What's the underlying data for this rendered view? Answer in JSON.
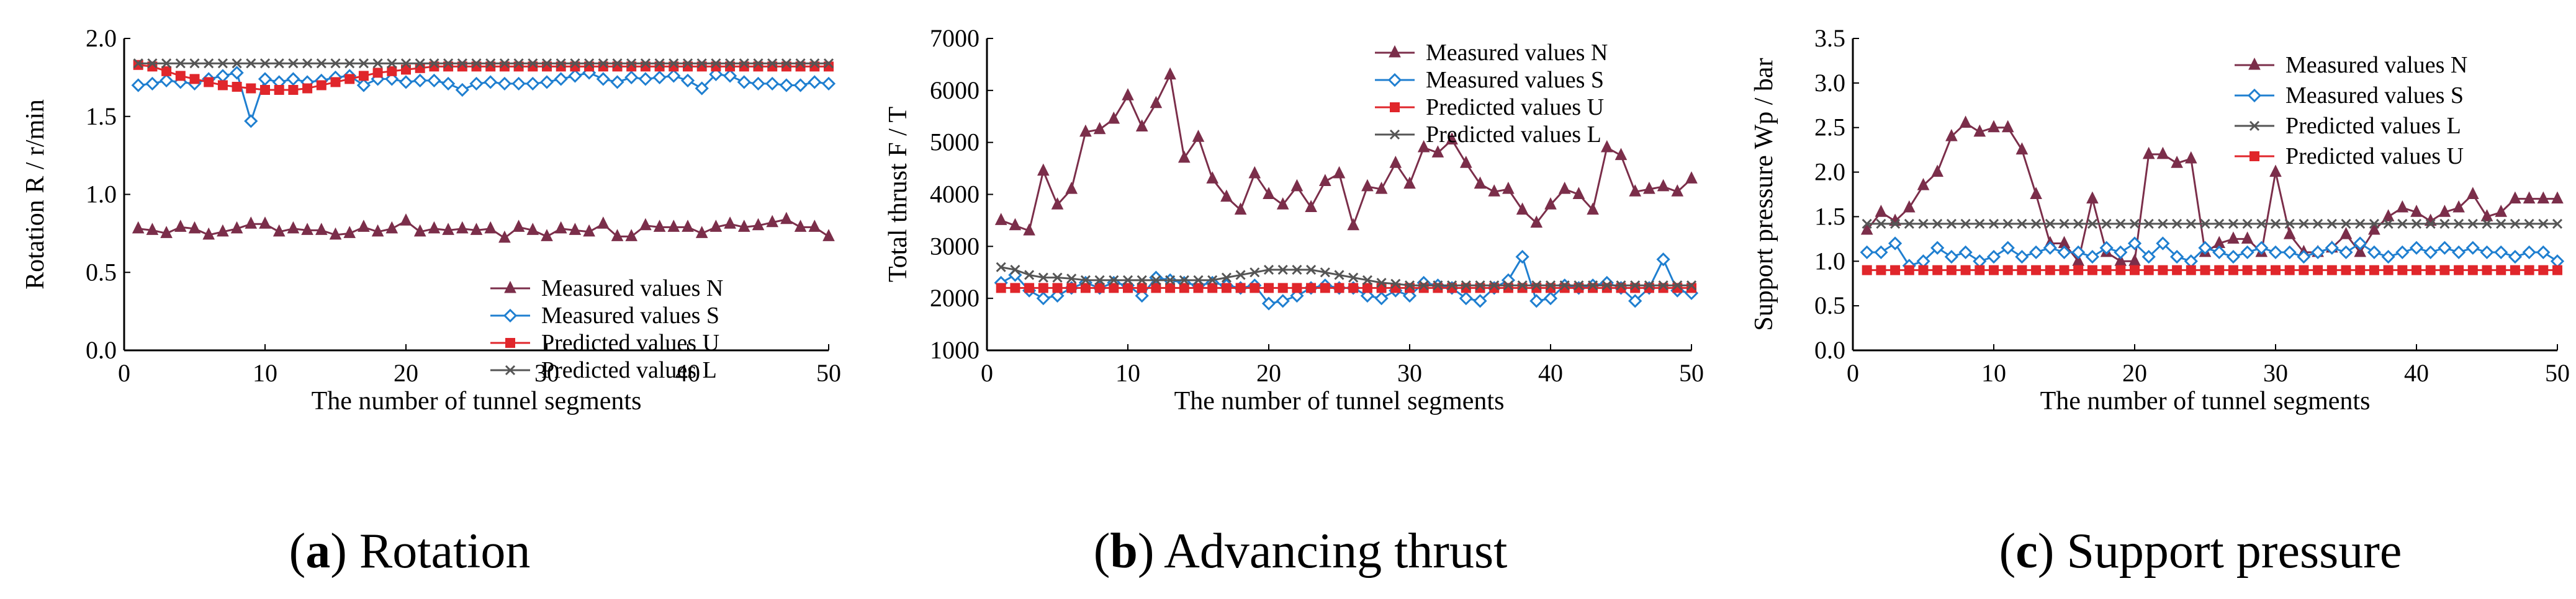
{
  "chart_data": [
    {
      "type": "line",
      "caption_letter": "a",
      "caption_text": "Rotation",
      "xlabel": "The number of tunnel segments",
      "ylabel": "Rotation R / r/min",
      "xlim": [
        0,
        50
      ],
      "ylim": [
        0,
        2.0
      ],
      "xticks": [
        0,
        10,
        20,
        30,
        40,
        50
      ],
      "yticks": [
        0.0,
        0.5,
        1.0,
        1.5,
        2.0
      ],
      "ytick_labels": [
        "0.0",
        "0.5",
        "1.0",
        "1.5",
        "2.0"
      ],
      "legend_position": "bottom-right",
      "series": [
        {
          "name": "Measured values N",
          "color": "#7b2e4a",
          "marker": "triangle",
          "values": [
            0.78,
            0.77,
            0.75,
            0.79,
            0.78,
            0.74,
            0.76,
            0.78,
            0.81,
            0.81,
            0.76,
            0.78,
            0.77,
            0.77,
            0.74,
            0.75,
            0.79,
            0.76,
            0.78,
            0.83,
            0.76,
            0.78,
            0.77,
            0.78,
            0.77,
            0.78,
            0.72,
            0.79,
            0.77,
            0.73,
            0.78,
            0.77,
            0.76,
            0.81,
            0.73,
            0.73,
            0.8,
            0.79,
            0.79,
            0.79,
            0.75,
            0.79,
            0.81,
            0.79,
            0.8,
            0.82,
            0.84,
            0.79,
            0.79,
            0.73
          ]
        },
        {
          "name": "Measured values S",
          "color": "#1f7fd0",
          "marker": "diamond",
          "values": [
            1.7,
            1.71,
            1.73,
            1.72,
            1.71,
            1.74,
            1.76,
            1.78,
            1.47,
            1.74,
            1.72,
            1.74,
            1.72,
            1.73,
            1.75,
            1.76,
            1.7,
            1.74,
            1.74,
            1.72,
            1.73,
            1.73,
            1.71,
            1.67,
            1.71,
            1.72,
            1.71,
            1.71,
            1.71,
            1.72,
            1.74,
            1.76,
            1.78,
            1.74,
            1.72,
            1.75,
            1.74,
            1.75,
            1.76,
            1.73,
            1.68,
            1.77,
            1.76,
            1.72,
            1.71,
            1.71,
            1.7,
            1.7,
            1.72,
            1.71
          ]
        },
        {
          "name": "Predicted values U",
          "color": "#e0262b",
          "marker": "square",
          "values": [
            1.83,
            1.82,
            1.79,
            1.76,
            1.74,
            1.72,
            1.7,
            1.69,
            1.68,
            1.67,
            1.67,
            1.67,
            1.68,
            1.7,
            1.72,
            1.74,
            1.76,
            1.78,
            1.79,
            1.8,
            1.81,
            1.82,
            1.82,
            1.82,
            1.82,
            1.82,
            1.82,
            1.82,
            1.82,
            1.82,
            1.82,
            1.82,
            1.82,
            1.82,
            1.82,
            1.82,
            1.82,
            1.82,
            1.82,
            1.82,
            1.82,
            1.82,
            1.82,
            1.82,
            1.82,
            1.82,
            1.82,
            1.82,
            1.82,
            1.82
          ]
        },
        {
          "name": "Predicted values L",
          "color": "#555555",
          "marker": "x",
          "values": [
            1.84,
            1.84,
            1.84,
            1.84,
            1.84,
            1.84,
            1.84,
            1.84,
            1.84,
            1.84,
            1.84,
            1.84,
            1.84,
            1.84,
            1.84,
            1.84,
            1.84,
            1.84,
            1.84,
            1.84,
            1.84,
            1.84,
            1.84,
            1.84,
            1.84,
            1.84,
            1.84,
            1.84,
            1.84,
            1.84,
            1.84,
            1.84,
            1.84,
            1.84,
            1.84,
            1.84,
            1.84,
            1.84,
            1.84,
            1.84,
            1.84,
            1.84,
            1.84,
            1.84,
            1.84,
            1.84,
            1.84,
            1.84,
            1.84,
            1.84
          ]
        }
      ]
    },
    {
      "type": "line",
      "caption_letter": "b",
      "caption_text": "Advancing thrust",
      "xlabel": "The number of tunnel segments",
      "ylabel": "Total thrust F / T",
      "xlim": [
        0,
        50
      ],
      "ylim": [
        1000,
        7000
      ],
      "xticks": [
        0,
        10,
        20,
        30,
        40,
        50
      ],
      "yticks": [
        1000,
        2000,
        3000,
        4000,
        5000,
        6000,
        7000
      ],
      "ytick_labels": [
        "1000",
        "2000",
        "3000",
        "4000",
        "5000",
        "6000",
        "7000"
      ],
      "legend_position": "top-right",
      "series": [
        {
          "name": "Measured values N",
          "color": "#7b2e4a",
          "marker": "triangle",
          "values": [
            3500,
            3400,
            3300,
            4450,
            3800,
            4100,
            5200,
            5250,
            5450,
            5900,
            5300,
            5750,
            6300,
            4700,
            5100,
            4300,
            3950,
            3700,
            4400,
            4000,
            3800,
            4150,
            3750,
            4250,
            4400,
            3400,
            4150,
            4100,
            4600,
            4200,
            4900,
            4800,
            5050,
            4600,
            4200,
            4050,
            4100,
            3700,
            3450,
            3800,
            4100,
            4000,
            3700,
            4900,
            4750,
            4050,
            4100,
            4150,
            4050,
            4300
          ]
        },
        {
          "name": "Measured values S",
          "color": "#1f7fd0",
          "marker": "diamond",
          "values": [
            2300,
            2450,
            2150,
            2000,
            2050,
            2200,
            2300,
            2200,
            2300,
            2250,
            2050,
            2400,
            2350,
            2300,
            2250,
            2300,
            2250,
            2200,
            2250,
            1900,
            1950,
            2050,
            2200,
            2250,
            2200,
            2200,
            2050,
            2000,
            2150,
            2050,
            2300,
            2250,
            2200,
            2000,
            1950,
            2200,
            2350,
            2800,
            1950,
            2000,
            2250,
            2200,
            2250,
            2300,
            2200,
            1950,
            2200,
            2750,
            2150,
            2100
          ]
        },
        {
          "name": "Predicted values U",
          "color": "#e0262b",
          "marker": "square",
          "values": [
            2200,
            2200,
            2200,
            2200,
            2200,
            2200,
            2200,
            2200,
            2200,
            2200,
            2200,
            2200,
            2200,
            2200,
            2200,
            2200,
            2200,
            2200,
            2200,
            2200,
            2200,
            2200,
            2200,
            2200,
            2200,
            2200,
            2200,
            2200,
            2200,
            2200,
            2200,
            2200,
            2200,
            2200,
            2200,
            2200,
            2200,
            2200,
            2200,
            2200,
            2200,
            2200,
            2200,
            2200,
            2200,
            2200,
            2200,
            2200,
            2200,
            2200
          ]
        },
        {
          "name": "Predicted values L",
          "color": "#555555",
          "marker": "x",
          "values": [
            2600,
            2550,
            2450,
            2400,
            2400,
            2380,
            2350,
            2350,
            2350,
            2350,
            2350,
            2350,
            2350,
            2350,
            2350,
            2350,
            2400,
            2450,
            2500,
            2550,
            2550,
            2550,
            2550,
            2500,
            2450,
            2400,
            2350,
            2300,
            2280,
            2250,
            2250,
            2250,
            2250,
            2250,
            2250,
            2250,
            2250,
            2250,
            2250,
            2250,
            2250,
            2250,
            2250,
            2250,
            2250,
            2250,
            2250,
            2250,
            2250,
            2250
          ]
        }
      ]
    },
    {
      "type": "line",
      "caption_letter": "c",
      "caption_text": "Support pressure",
      "xlabel": "The number of tunnel segments",
      "ylabel": "Support pressure Wp / bar",
      "xlim": [
        0,
        50
      ],
      "ylim": [
        0,
        3.5
      ],
      "xticks": [
        0,
        10,
        20,
        30,
        40,
        50
      ],
      "yticks": [
        0.0,
        0.5,
        1.0,
        1.5,
        2.0,
        2.5,
        3.0,
        3.5
      ],
      "ytick_labels": [
        "0.0",
        "0.5",
        "1.0",
        "1.5",
        "2.0",
        "2.5",
        "3.0",
        "3.5"
      ],
      "legend_position": "top-right",
      "series": [
        {
          "name": "Measured values N",
          "color": "#7b2e4a",
          "marker": "triangle",
          "values": [
            1.35,
            1.55,
            1.45,
            1.6,
            1.85,
            2.0,
            2.4,
            2.55,
            2.45,
            2.5,
            2.5,
            2.25,
            1.75,
            1.2,
            1.2,
            1.0,
            1.7,
            1.1,
            1.0,
            1.0,
            2.2,
            2.2,
            2.1,
            2.15,
            1.1,
            1.2,
            1.25,
            1.25,
            1.1,
            2.0,
            1.3,
            1.1,
            1.1,
            1.15,
            1.3,
            1.1,
            1.35,
            1.5,
            1.6,
            1.55,
            1.45,
            1.55,
            1.6,
            1.75,
            1.5,
            1.55,
            1.7,
            1.7,
            1.7,
            1.7
          ]
        },
        {
          "name": "Measured values S",
          "color": "#1f7fd0",
          "marker": "diamond",
          "values": [
            1.1,
            1.1,
            1.2,
            0.95,
            1.0,
            1.15,
            1.05,
            1.1,
            1.0,
            1.05,
            1.15,
            1.05,
            1.1,
            1.15,
            1.1,
            1.1,
            1.05,
            1.15,
            1.1,
            1.2,
            1.05,
            1.2,
            1.05,
            1.0,
            1.15,
            1.1,
            1.05,
            1.1,
            1.15,
            1.1,
            1.1,
            1.05,
            1.1,
            1.15,
            1.1,
            1.2,
            1.1,
            1.05,
            1.1,
            1.15,
            1.1,
            1.15,
            1.1,
            1.15,
            1.1,
            1.1,
            1.05,
            1.1,
            1.1,
            1.0
          ]
        },
        {
          "name": "Predicted values L",
          "color": "#555555",
          "marker": "x",
          "values": [
            1.42,
            1.42,
            1.42,
            1.42,
            1.42,
            1.42,
            1.42,
            1.42,
            1.42,
            1.42,
            1.42,
            1.42,
            1.42,
            1.42,
            1.42,
            1.42,
            1.42,
            1.42,
            1.42,
            1.42,
            1.42,
            1.42,
            1.42,
            1.42,
            1.42,
            1.42,
            1.42,
            1.42,
            1.42,
            1.42,
            1.42,
            1.42,
            1.42,
            1.42,
            1.42,
            1.42,
            1.42,
            1.42,
            1.42,
            1.42,
            1.42,
            1.42,
            1.42,
            1.42,
            1.42,
            1.42,
            1.42,
            1.42,
            1.42,
            1.42
          ]
        },
        {
          "name": "Predicted values U",
          "color": "#e0262b",
          "marker": "square",
          "values": [
            0.9,
            0.9,
            0.9,
            0.9,
            0.9,
            0.9,
            0.9,
            0.9,
            0.9,
            0.9,
            0.9,
            0.9,
            0.9,
            0.9,
            0.9,
            0.9,
            0.9,
            0.9,
            0.9,
            0.9,
            0.9,
            0.9,
            0.9,
            0.9,
            0.9,
            0.9,
            0.9,
            0.9,
            0.9,
            0.9,
            0.9,
            0.9,
            0.9,
            0.9,
            0.9,
            0.9,
            0.9,
            0.9,
            0.9,
            0.9,
            0.9,
            0.9,
            0.9,
            0.9,
            0.9,
            0.9,
            0.9,
            0.9,
            0.9,
            0.9
          ]
        }
      ]
    }
  ]
}
